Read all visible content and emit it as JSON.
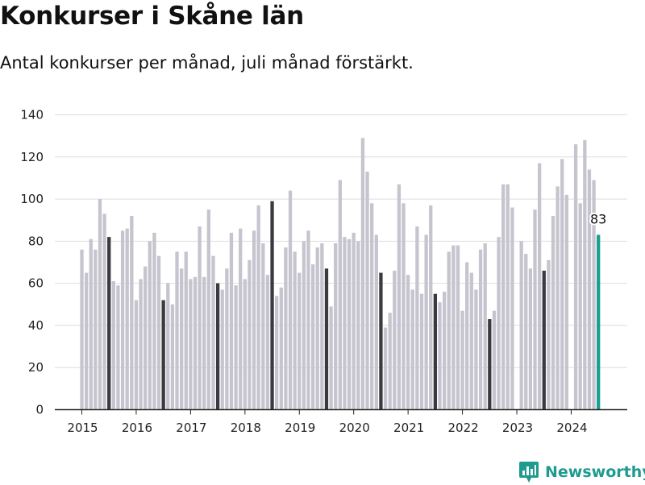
{
  "title": "Konkurser i Skåne län",
  "subtitle": "Antal konkurser per månad, juli månad förstärkt.",
  "brand": "Newsworthy",
  "colors": {
    "regular": "#c6c5cf",
    "highlight": "#3b3a40",
    "latest": "#1a9e8f",
    "grid": "#dddddd"
  },
  "chart_data": {
    "type": "bar",
    "start": "2015-01",
    "ylim": [
      0,
      140
    ],
    "yticks": [
      0,
      20,
      40,
      60,
      80,
      100,
      120,
      140
    ],
    "xticks": [
      "2015",
      "2016",
      "2017",
      "2018",
      "2019",
      "2020",
      "2021",
      "2022",
      "2023",
      "2024"
    ],
    "highlight_month": "juli",
    "latest_label": "83",
    "values": [
      76,
      65,
      81,
      76,
      100,
      93,
      82,
      61,
      59,
      85,
      86,
      92,
      52,
      62,
      68,
      80,
      84,
      73,
      52,
      60,
      50,
      75,
      67,
      75,
      62,
      63,
      87,
      63,
      95,
      73,
      60,
      57,
      67,
      84,
      59,
      86,
      62,
      71,
      85,
      97,
      79,
      64,
      99,
      54,
      58,
      77,
      104,
      75,
      65,
      80,
      85,
      69,
      77,
      79,
      67,
      49,
      79,
      109,
      82,
      81,
      84,
      80,
      129,
      113,
      98,
      83,
      65,
      39,
      46,
      66,
      107,
      98,
      64,
      57,
      87,
      55,
      83,
      97,
      55,
      51,
      56,
      75,
      78,
      78,
      47,
      70,
      65,
      57,
      76,
      79,
      43,
      47,
      82,
      107,
      107,
      96,
      0,
      80,
      74,
      67,
      95,
      117,
      66,
      71,
      92,
      106,
      119,
      102,
      0,
      126,
      98,
      128,
      114,
      109,
      83
    ]
  }
}
